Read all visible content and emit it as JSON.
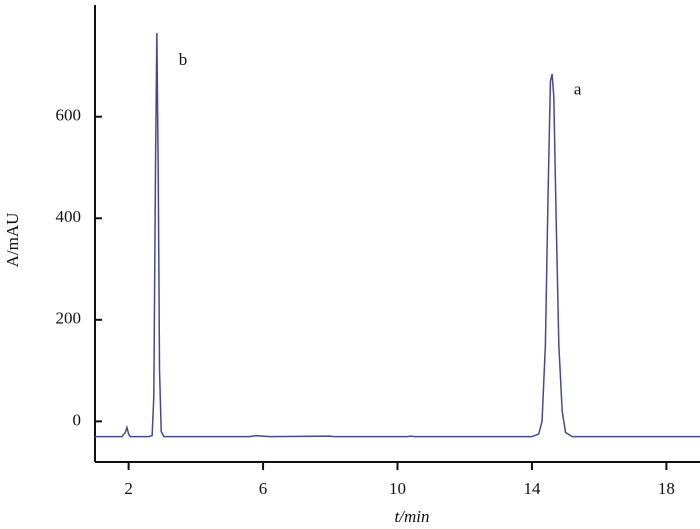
{
  "chart_data": {
    "type": "line",
    "xlabel": "t/min",
    "ylabel": "A/mAU",
    "xlim": [
      1,
      19
    ],
    "ylim": [
      -80,
      820
    ],
    "xticks": [
      2,
      6,
      10,
      14,
      18
    ],
    "yticks": [
      0,
      200,
      400,
      600
    ],
    "annotations": [
      {
        "text": "b",
        "x": 3.62,
        "y": 710
      },
      {
        "text": "a",
        "x": 15.36,
        "y": 651
      }
    ],
    "series": [
      {
        "color": "#464a8a",
        "x": [
          1.0,
          1.8,
          1.9,
          1.95,
          2.0,
          2.05,
          2.6,
          2.7,
          2.75,
          2.8,
          2.84,
          2.88,
          2.92,
          2.97,
          3.05,
          5.6,
          5.8,
          6.0,
          6.2,
          8.0,
          8.1,
          10.3,
          10.4,
          10.5,
          14.0,
          14.2,
          14.3,
          14.4,
          14.48,
          14.55,
          14.6,
          14.65,
          14.72,
          14.8,
          14.9,
          15.0,
          15.2,
          19.0
        ],
        "values": [
          -30,
          -30,
          -22,
          -12,
          -25,
          -30,
          -30,
          -28,
          50,
          500,
          765,
          500,
          100,
          -20,
          -30,
          -30,
          -28,
          -29,
          -30,
          -29,
          -30,
          -30,
          -29,
          -30,
          -30,
          -25,
          0,
          150,
          450,
          670,
          684,
          640,
          400,
          150,
          20,
          -22,
          -30,
          -30
        ]
      }
    ]
  }
}
